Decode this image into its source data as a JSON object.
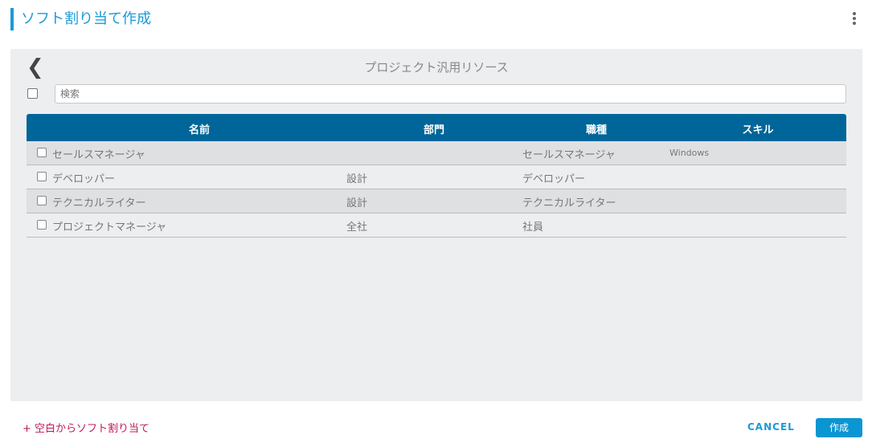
{
  "header": {
    "title": "ソフト割り当て作成",
    "menu_icon": "kebab-icon"
  },
  "panel": {
    "title": "プロジェクト汎用リソース",
    "back_icon": "chevron-left-icon",
    "search": {
      "value": "",
      "placeholder": "検索"
    },
    "columns": [
      "名前",
      "部門",
      "職種",
      "スキル"
    ],
    "rows": [
      {
        "name": "セールスマネージャ",
        "dept": "",
        "job": "セールスマネージャ",
        "skill": "Windows"
      },
      {
        "name": "デベロッパー",
        "dept": "設計",
        "job": "デベロッパー",
        "skill": ""
      },
      {
        "name": "テクニカルライター",
        "dept": "設計",
        "job": "テクニカルライター",
        "skill": ""
      },
      {
        "name": "プロジェクトマネージャ",
        "dept": "全社",
        "job": "社員",
        "skill": ""
      }
    ]
  },
  "footer": {
    "add_label": "+ 空白からソフト割り当て",
    "cancel_label": "CANCEL",
    "create_label": "作成"
  },
  "colors": {
    "accent": "#1a9ad6",
    "header_bg": "#006699",
    "add_link": "#c2185b"
  }
}
